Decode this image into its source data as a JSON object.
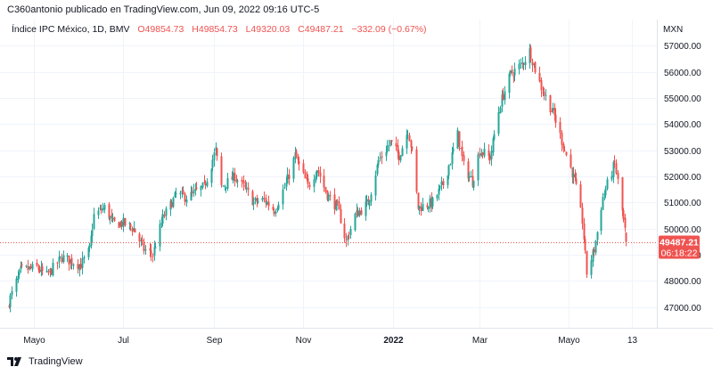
{
  "caption": "C360antonio publicado en TradingView.com, Jun 09, 2022 09:16 UTC-5",
  "footer": {
    "brand": "TradingView",
    "logo_icon": "tradingview-logo-icon"
  },
  "colors": {
    "up": "#26a69a",
    "down": "#ef5350",
    "grid": "#f0f3fa",
    "text": "#131722",
    "axis_text": "#131722"
  },
  "chart_data": {
    "type": "candlestick",
    "symbol_line": "Índice IPC México, 1D, BMV",
    "ohlc": {
      "open": "O49854.73",
      "high": "H49854.73",
      "low": "L49320.03",
      "close": "C49487.21",
      "change": "−332.09 (−0.67%)"
    },
    "y_unit": "MXN",
    "ylim": [
      46200,
      58000
    ],
    "y_ticks": [
      47000,
      48000,
      49000,
      50000,
      51000,
      52000,
      53000,
      54000,
      55000,
      56000,
      57000
    ],
    "y_tick_labels": [
      "47000.00",
      "48000.00",
      "49000.00",
      "50000.00",
      "51000.00",
      "52000.00",
      "53000.00",
      "54000.00",
      "55000.00",
      "56000.00",
      "57000.00"
    ],
    "x_tick_labels": [
      "Mayo",
      "Jul",
      "Sep",
      "Nov",
      "2022",
      "Mar",
      "Mayo",
      "13"
    ],
    "x_tick_dates": [
      "2021-05-01",
      "2021-07-01",
      "2021-09-01",
      "2021-11-01",
      "2022-01-01",
      "2022-03-01",
      "2022-05-01",
      "2022-06-13"
    ],
    "x_range": [
      "2021-04-13",
      "2022-06-30"
    ],
    "last_price": {
      "value": 49487.21,
      "label": "49487.21",
      "countdown": "06:18:22"
    },
    "anchors": [
      [
        "2021-04-14",
        47200
      ],
      [
        "2021-04-22",
        48400
      ],
      [
        "2021-05-03",
        48500
      ],
      [
        "2021-05-10",
        48200
      ],
      [
        "2021-05-20",
        48900
      ],
      [
        "2021-06-02",
        48600
      ],
      [
        "2021-06-08",
        49200
      ],
      [
        "2021-06-11",
        50500
      ],
      [
        "2021-06-18",
        50800
      ],
      [
        "2021-06-24",
        50200
      ],
      [
        "2021-07-01",
        50200
      ],
      [
        "2021-07-08",
        50000
      ],
      [
        "2021-07-15",
        49200
      ],
      [
        "2021-07-21",
        49000
      ],
      [
        "2021-07-28",
        50400
      ],
      [
        "2021-08-06",
        51300
      ],
      [
        "2021-08-14",
        51200
      ],
      [
        "2021-08-25",
        51600
      ],
      [
        "2021-09-02",
        53000
      ],
      [
        "2021-09-06",
        51600
      ],
      [
        "2021-09-15",
        52000
      ],
      [
        "2021-09-22",
        51500
      ],
      [
        "2021-09-28",
        51000
      ],
      [
        "2021-10-05",
        51100
      ],
      [
        "2021-10-12",
        50700
      ],
      [
        "2021-10-20",
        51700
      ],
      [
        "2021-10-26",
        52800
      ],
      [
        "2021-11-04",
        51600
      ],
      [
        "2021-11-10",
        52300
      ],
      [
        "2021-11-17",
        51300
      ],
      [
        "2021-11-24",
        50800
      ],
      [
        "2021-11-30",
        49500
      ],
      [
        "2021-12-06",
        50500
      ],
      [
        "2021-12-15",
        51000
      ],
      [
        "2021-12-22",
        52600
      ],
      [
        "2021-12-30",
        53300
      ],
      [
        "2022-01-05",
        52800
      ],
      [
        "2022-01-11",
        53800
      ],
      [
        "2022-01-14",
        52900
      ],
      [
        "2022-01-18",
        50800
      ],
      [
        "2022-01-28",
        51000
      ],
      [
        "2022-02-04",
        51700
      ],
      [
        "2022-02-09",
        52600
      ],
      [
        "2022-02-14",
        53600
      ],
      [
        "2022-02-18",
        52400
      ],
      [
        "2022-02-24",
        51800
      ],
      [
        "2022-03-01",
        53000
      ],
      [
        "2022-03-08",
        52700
      ],
      [
        "2022-03-15",
        54800
      ],
      [
        "2022-03-22",
        55900
      ],
      [
        "2022-03-30",
        56300
      ],
      [
        "2022-04-04",
        56800
      ],
      [
        "2022-04-12",
        55400
      ],
      [
        "2022-04-21",
        54300
      ],
      [
        "2022-04-28",
        53000
      ],
      [
        "2022-05-05",
        51800
      ],
      [
        "2022-05-10",
        50300
      ],
      [
        "2022-05-13",
        48300
      ],
      [
        "2022-05-18",
        49200
      ],
      [
        "2022-05-24",
        51200
      ],
      [
        "2022-06-01",
        52500
      ],
      [
        "2022-06-03",
        51800
      ],
      [
        "2022-06-08",
        49900
      ],
      [
        "2022-06-09",
        49487
      ]
    ]
  }
}
